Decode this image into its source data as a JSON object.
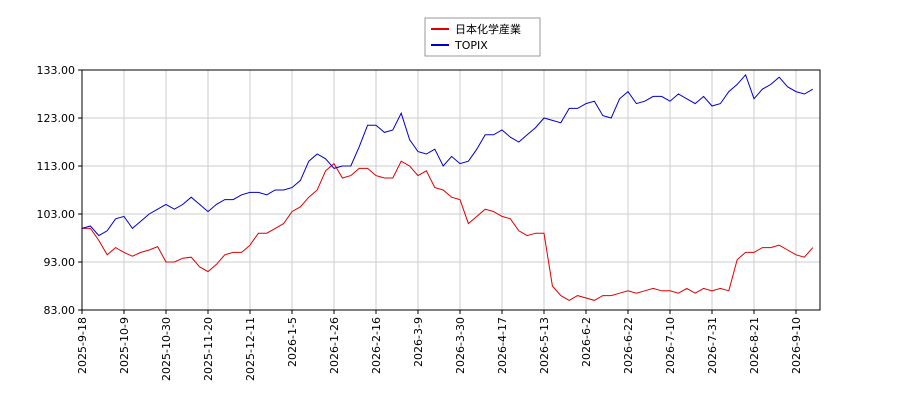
{
  "chart_data": {
    "type": "line",
    "categories": [
      "2025-9-18",
      null,
      null,
      null,
      null,
      "2025-10-9",
      null,
      null,
      null,
      null,
      "2025-10-30",
      null,
      null,
      null,
      null,
      "2025-11-20",
      null,
      null,
      null,
      null,
      "2025-12-11",
      null,
      null,
      null,
      null,
      "2026-1-5",
      null,
      null,
      null,
      null,
      "2026-1-26",
      null,
      null,
      null,
      null,
      "2026-2-16",
      null,
      null,
      null,
      null,
      "2026-3-9",
      null,
      null,
      null,
      null,
      "2026-3-30",
      null,
      null,
      null,
      null,
      "2026-4-17",
      null,
      null,
      null,
      null,
      "2026-5-13",
      null,
      null,
      null,
      null,
      "2026-6-2",
      null,
      null,
      null,
      null,
      "2026-6-22",
      null,
      null,
      null,
      null,
      "2026-7-10",
      null,
      null,
      null,
      null,
      "2026-7-31",
      null,
      null,
      null,
      null,
      "2026-8-21",
      null,
      null,
      null,
      null,
      "2026-9-10",
      null,
      null
    ],
    "series": [
      {
        "name": "日本化学産業",
        "color": "#dd0000",
        "values": [
          100.0,
          100.0,
          97.5,
          94.5,
          96.0,
          95.0,
          94.2,
          95.0,
          95.5,
          96.2,
          93.0,
          93.0,
          93.8,
          94.0,
          92.0,
          91.0,
          92.5,
          94.5,
          95.0,
          95.0,
          96.5,
          99.0,
          99.0,
          100.0,
          101.0,
          103.5,
          104.5,
          106.5,
          108.0,
          112.0,
          113.5,
          110.5,
          111.0,
          112.5,
          112.5,
          111.0,
          110.5,
          110.5,
          114.0,
          113.0,
          111.0,
          112.0,
          108.5,
          108.0,
          106.5,
          106.0,
          101.0,
          102.5,
          104.0,
          103.5,
          102.5,
          102.0,
          99.5,
          98.5,
          99.0,
          99.0,
          88.0,
          86.0,
          85.0,
          86.0,
          85.5,
          85.0,
          86.0,
          86.0,
          86.5,
          87.0,
          86.5,
          87.0,
          87.5,
          87.0,
          87.0,
          86.5,
          87.5,
          86.5,
          87.5,
          87.0,
          87.5,
          87.0,
          93.5,
          95.0,
          95.0,
          96.0,
          96.0,
          96.5,
          95.5,
          94.5,
          94.0,
          96.0
        ]
      },
      {
        "name": "TOPIX",
        "color": "#0000cc",
        "values": [
          100.0,
          100.5,
          98.5,
          99.5,
          102.0,
          102.5,
          100.0,
          101.5,
          103.0,
          104.0,
          105.0,
          104.0,
          105.0,
          106.5,
          105.0,
          103.5,
          105.0,
          106.0,
          106.0,
          107.0,
          107.5,
          107.5,
          107.0,
          108.0,
          108.0,
          108.5,
          110.0,
          114.0,
          115.5,
          114.5,
          112.5,
          113.0,
          113.0,
          117.0,
          121.5,
          121.5,
          120.0,
          120.5,
          124.0,
          118.5,
          116.0,
          115.5,
          116.5,
          113.0,
          115.0,
          113.5,
          114.0,
          116.5,
          119.5,
          119.5,
          120.5,
          119.0,
          118.0,
          119.5,
          121.0,
          123.0,
          122.5,
          122.0,
          125.0,
          125.0,
          126.0,
          126.5,
          123.5,
          123.0,
          127.0,
          128.5,
          126.0,
          126.5,
          127.5,
          127.5,
          126.5,
          128.0,
          127.0,
          126.0,
          127.5,
          125.5,
          126.0,
          128.5,
          130.0,
          132.0,
          127.0,
          129.0,
          130.0,
          131.5,
          129.5,
          128.5,
          128.0,
          129.0
        ]
      }
    ],
    "ylim": [
      83,
      133
    ],
    "yticks": [
      {
        "value": 83,
        "label": "83.00"
      },
      {
        "value": 93,
        "label": "93.00"
      },
      {
        "value": 103,
        "label": "103.00"
      },
      {
        "value": 113,
        "label": "113.00"
      },
      {
        "value": 123,
        "label": "123.00"
      },
      {
        "value": 133,
        "label": "133.00"
      }
    ],
    "grid": true
  }
}
